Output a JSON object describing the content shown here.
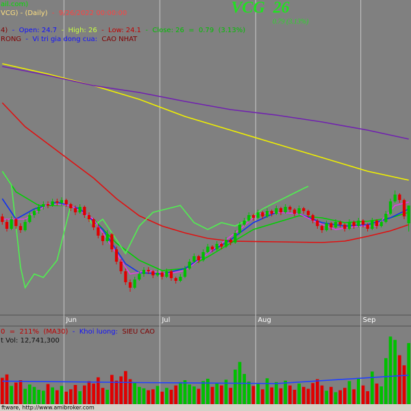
{
  "chart_data": {
    "type": "candlestick",
    "title": "VCG  26",
    "title_color": "#22e022",
    "subtitle": "0.79 (3.13%)",
    "header": [
      [
        {
          "text": "ail.com)",
          "color": "#00e000"
        }
      ],
      [
        {
          "text": "VCG) - (Daily)",
          "color": "#ffe080"
        },
        {
          "text": "  -  9/26/2022 00:00:00",
          "color": "#ff4040"
        }
      ],
      [
        {
          "text": "4)",
          "color": "#800000"
        },
        {
          "text": "  -  Open: 24.7",
          "color": "#1010ff"
        },
        {
          "text": "  -  High: 26",
          "color": "#c8ff40"
        },
        {
          "text": "  -  Low: 24.1",
          "color": "#c00000"
        },
        {
          "text": "  -  Close: 26  =  0.79  (3.13%)",
          "color": "#00c000"
        }
      ],
      [
        {
          "text": "RONG",
          "color": "#800000"
        },
        {
          "text": "  -  Vi tri gia dong cua:",
          "color": "#1010ff"
        },
        {
          "text": "  CAO NHAT",
          "color": "#800000"
        }
      ]
    ],
    "volume_header": [
      [
        {
          "text": "0  =  211%  (MA30)",
          "color": "#c00000"
        },
        {
          "text": "  -  Khoi luong:",
          "color": "#1010ff"
        },
        {
          "text": "  SIEU CAO",
          "color": "#800000"
        }
      ],
      [
        {
          "text": "t Vol: 12,741,300",
          "color": "#101010"
        }
      ]
    ],
    "footer": "ftware, http://www.amibroker.com",
    "xlim": [
      -0.5,
      89.5
    ],
    "xticks": [
      {
        "value": 14,
        "label": "Jun"
      },
      {
        "value": 35,
        "label": "Jul"
      },
      {
        "value": 56,
        "label": "Aug"
      },
      {
        "value": 79,
        "label": "Sep"
      }
    ],
    "ylim": [
      18,
      41
    ],
    "up_color": "#00c000",
    "down_color": "#e00000",
    "open": [
      25.2,
      24.8,
      24.3,
      25.0,
      24.5,
      24.2,
      24.8,
      25.3,
      25.6,
      25.9,
      26.1,
      26.0,
      26.3,
      26.2,
      26.4,
      26.1,
      25.8,
      25.5,
      25.9,
      25.3,
      25.0,
      24.4,
      23.8,
      23.4,
      23.9,
      22.8,
      21.9,
      21.2,
      20.4,
      20.0,
      20.6,
      21.0,
      21.3,
      21.2,
      20.9,
      21.1,
      20.8,
      21.2,
      20.7,
      20.5,
      20.8,
      21.4,
      21.9,
      22.3,
      22.0,
      22.6,
      23.0,
      22.8,
      23.2,
      23.0,
      23.5,
      23.3,
      24.0,
      24.6,
      24.9,
      25.3,
      25.1,
      25.5,
      25.2,
      25.6,
      25.4,
      25.8,
      25.5,
      25.9,
      25.7,
      25.4,
      25.8,
      25.6,
      25.3,
      24.9,
      24.5,
      24.2,
      24.7,
      24.4,
      24.8,
      24.6,
      24.3,
      24.8,
      24.5,
      24.9,
      24.6,
      24.3,
      24.9,
      24.5,
      24.8,
      25.4,
      26.3,
      26.8,
      26.4,
      24.7
    ],
    "high": [
      25.4,
      25.0,
      25.2,
      25.1,
      24.7,
      25.0,
      25.5,
      25.8,
      26.1,
      26.3,
      26.3,
      26.5,
      26.5,
      26.6,
      26.5,
      26.2,
      26.0,
      26.1,
      26.0,
      25.5,
      25.1,
      24.6,
      24.0,
      24.2,
      24.0,
      23.0,
      22.1,
      21.4,
      20.6,
      20.8,
      21.2,
      21.5,
      21.5,
      21.3,
      21.3,
      21.2,
      21.4,
      21.3,
      20.8,
      21.0,
      21.6,
      22.1,
      22.5,
      22.4,
      22.8,
      23.2,
      23.1,
      23.4,
      23.3,
      23.7,
      23.6,
      24.2,
      24.8,
      25.1,
      25.5,
      25.4,
      25.7,
      25.6,
      25.8,
      25.7,
      26.0,
      25.9,
      26.1,
      26.0,
      25.8,
      26.0,
      25.9,
      25.7,
      25.4,
      25.0,
      24.6,
      24.9,
      24.8,
      25.0,
      24.9,
      24.7,
      25.0,
      24.9,
      25.1,
      25.0,
      24.7,
      25.1,
      25.0,
      25.0,
      25.6,
      26.5,
      27.1,
      26.9,
      26.5,
      26
    ],
    "low": [
      24.6,
      24.1,
      24.2,
      24.3,
      24.0,
      24.1,
      24.7,
      25.1,
      25.4,
      25.7,
      25.8,
      25.9,
      26.0,
      26.0,
      25.9,
      25.6,
      25.3,
      25.4,
      25.1,
      24.8,
      24.2,
      23.6,
      23.1,
      23.3,
      22.6,
      21.7,
      21.0,
      20.2,
      19.7,
      19.9,
      20.5,
      20.8,
      21.0,
      20.7,
      20.8,
      20.6,
      20.7,
      20.5,
      20.3,
      20.4,
      20.7,
      21.3,
      21.8,
      21.8,
      21.9,
      22.5,
      22.6,
      22.7,
      22.8,
      22.9,
      23.1,
      23.2,
      23.9,
      24.5,
      24.8,
      24.9,
      25.0,
      25.0,
      25.1,
      25.2,
      25.3,
      25.3,
      25.4,
      25.5,
      25.2,
      25.3,
      25.4,
      25.1,
      24.7,
      24.3,
      24.0,
      24.1,
      24.2,
      24.3,
      24.4,
      24.1,
      24.2,
      24.3,
      24.4,
      24.4,
      24.1,
      24.2,
      24.3,
      24.4,
      24.7,
      25.3,
      26.2,
      26.2,
      25.0,
      24.1
    ],
    "close": [
      24.8,
      24.3,
      25.0,
      24.5,
      24.2,
      24.8,
      25.3,
      25.6,
      25.9,
      26.1,
      26.0,
      26.3,
      26.2,
      26.4,
      26.1,
      25.8,
      25.5,
      25.9,
      25.3,
      25.0,
      24.4,
      23.8,
      23.4,
      23.9,
      22.8,
      21.9,
      21.2,
      20.4,
      20.0,
      20.6,
      21.0,
      21.3,
      21.2,
      20.9,
      21.1,
      20.8,
      21.2,
      20.7,
      20.5,
      20.8,
      21.4,
      21.9,
      22.3,
      22.0,
      22.6,
      23.0,
      22.8,
      23.2,
      23.0,
      23.5,
      23.3,
      24.0,
      24.6,
      24.9,
      25.3,
      25.1,
      25.5,
      25.2,
      25.6,
      25.4,
      25.8,
      25.5,
      25.9,
      25.7,
      25.4,
      25.8,
      25.6,
      25.3,
      24.9,
      24.5,
      24.2,
      24.7,
      24.4,
      24.8,
      24.6,
      24.3,
      24.8,
      24.5,
      24.9,
      24.6,
      24.3,
      24.9,
      24.5,
      24.8,
      25.4,
      26.3,
      26.8,
      26.4,
      25.21,
      26
    ],
    "series": [
      {
        "color": "#f0f000",
        "x": [
          0,
          10,
          20,
          30,
          40,
          50,
          60,
          70,
          80,
          89
        ],
        "values": [
          36.35,
          35.6,
          34.75,
          33.75,
          32.5,
          31.5,
          30.5,
          29.5,
          28.5,
          27.85
        ]
      },
      {
        "color": "#7020b0",
        "x": [
          0,
          10,
          20,
          30,
          40,
          50,
          60,
          70,
          80,
          89
        ],
        "values": [
          36.15,
          35.5,
          34.75,
          34.25,
          33.6,
          33.0,
          32.6,
          32.1,
          31.5,
          30.85
        ]
      },
      {
        "color": "#e01010",
        "x": [
          0,
          5,
          10,
          15,
          20,
          25,
          30,
          35,
          40,
          45,
          50,
          60,
          70,
          75,
          80,
          85,
          89
        ],
        "values": [
          33.5,
          31.75,
          30.5,
          29.25,
          28.0,
          26.5,
          25.25,
          24.5,
          24.0,
          23.6,
          23.4,
          23.35,
          23.3,
          23.4,
          23.75,
          24.15,
          24.6
        ]
      },
      {
        "color": "#00d000",
        "x": [
          0,
          3,
          8,
          15,
          20,
          25,
          30,
          35,
          40,
          45,
          50,
          55,
          60,
          65,
          70,
          75,
          80,
          85,
          89
        ],
        "values": [
          28.5,
          27.0,
          26.0,
          26.0,
          25.0,
          23.25,
          22.0,
          21.25,
          21.4,
          22.25,
          23.25,
          24.25,
          24.75,
          25.25,
          25.1,
          24.75,
          24.85,
          25.1,
          25.5
        ]
      },
      {
        "color": "#50f050",
        "x": [
          0,
          2,
          4,
          5,
          7,
          9,
          12,
          15,
          18,
          20,
          22,
          24,
          27,
          30,
          33,
          36,
          39,
          42,
          45,
          48,
          51,
          54,
          57,
          60,
          63,
          66,
          67
        ],
        "values": [
          28.5,
          27.5,
          21.5,
          20.0,
          21.0,
          20.75,
          22.0,
          26.0,
          25.5,
          24.5,
          25.0,
          24.0,
          22.5,
          24.5,
          25.5,
          25.75,
          26.0,
          24.75,
          24.25,
          24.75,
          24.5,
          25.0,
          25.75,
          26.25,
          26.75,
          27.25,
          27.4
        ]
      },
      {
        "color": "#1030f0",
        "x": [
          0,
          3,
          7,
          12,
          17,
          22,
          27,
          30,
          35,
          40,
          45,
          50,
          55,
          60,
          65,
          70,
          75,
          80,
          85,
          89
        ],
        "values": [
          26.5,
          25.0,
          25.75,
          26.25,
          25.75,
          24.25,
          21.75,
          21.1,
          21.0,
          21.4,
          22.5,
          23.5,
          24.75,
          25.5,
          25.4,
          24.75,
          24.5,
          24.6,
          25.1,
          25.75
        ]
      },
      {
        "color": "#e040e0",
        "x": [
          0,
          5,
          10,
          15,
          20,
          25,
          28,
          32,
          36,
          40,
          44,
          48,
          52,
          56,
          60,
          65,
          69,
          73,
          78,
          82,
          86,
          89
        ],
        "values": [
          25.0,
          25.0,
          26.1,
          26.0,
          25.0,
          22.5,
          21.0,
          21.25,
          21.0,
          21.25,
          22.25,
          23.25,
          24.25,
          25.4,
          25.5,
          25.4,
          24.75,
          24.25,
          24.5,
          24.5,
          26.0,
          26.25
        ]
      }
    ],
    "volume": [
      5500000,
      6200000,
      3800000,
      4500000,
      5000000,
      3200000,
      4100000,
      3600000,
      3000000,
      2800000,
      4200000,
      3500000,
      2900000,
      3800000,
      2600000,
      3100000,
      4000000,
      2700000,
      3900000,
      4800000,
      4300000,
      5600000,
      3400000,
      3000000,
      6100000,
      4900000,
      5800000,
      6900000,
      5200000,
      4400000,
      3600000,
      3300000,
      2900000,
      3100000,
      3800000,
      2600000,
      3400000,
      3000000,
      3900000,
      4600000,
      5000000,
      4100000,
      3700000,
      3200000,
      4800000,
      5300000,
      3600000,
      4400000,
      3900000,
      5100000,
      3400000,
      7200000,
      8800000,
      6300000,
      4700000,
      3800000,
      4200000,
      3100000,
      5400000,
      3500000,
      4600000,
      3300000,
      4900000,
      3900000,
      3000000,
      4300000,
      3600000,
      3200000,
      4400000,
      5200000,
      3900000,
      2800000,
      3600000,
      2500000,
      2900000,
      3400000,
      4800000,
      3100000,
      5300000,
      3900000,
      2700000,
      6800000,
      4300000,
      3700000,
      9600000,
      14100000,
      13400000,
      10200000,
      8100000,
      12741300
    ],
    "vlim": [
      0,
      16000000
    ],
    "volume_series": [
      {
        "color": "#2040ff",
        "x": [
          0,
          30,
          60,
          89
        ],
        "values": [
          4800000,
          4500000,
          4300000,
          6040000
        ]
      }
    ]
  }
}
